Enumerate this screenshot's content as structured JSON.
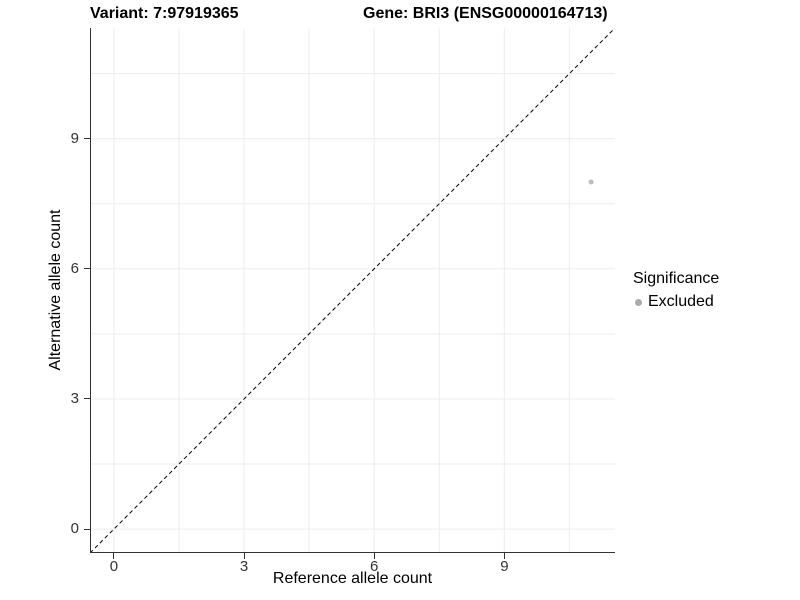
{
  "figure": {
    "title_left": "Variant: 7:97919365",
    "title_right": "Gene: BRI3 (ENSG00000164713)"
  },
  "chart_data": {
    "type": "scatter",
    "title": "Variant: 7:97919365 | Gene: BRI3 (ENSG00000164713)",
    "xlabel": "Reference allele count",
    "ylabel": "Alternative allele count",
    "xlim": [
      -0.55,
      11.55
    ],
    "ylim": [
      -0.55,
      11.55
    ],
    "x_ticks": [
      0,
      3,
      6,
      9
    ],
    "y_ticks": [
      0,
      3,
      6,
      9
    ],
    "minor_gridlines": [
      1.5,
      4.5,
      7.5,
      10.5
    ],
    "grid": "on",
    "legend_position": "right",
    "reference_line": {
      "type": "identity",
      "equation": "y = x",
      "style": "dashed"
    },
    "series": [
      {
        "name": "Excluded",
        "points": [
          {
            "x": 11,
            "y": 8
          }
        ]
      }
    ],
    "legend": {
      "title": "Significance",
      "items": [
        {
          "label": "Excluded",
          "marker": "circle"
        }
      ]
    },
    "colors": {
      "point": "#bdbdbd",
      "legend_marker": "#ababab",
      "axis": "#333333",
      "gridline": "#ededed",
      "reference_line": "#000000",
      "tick_text": "#333333",
      "text": "#000000"
    }
  }
}
